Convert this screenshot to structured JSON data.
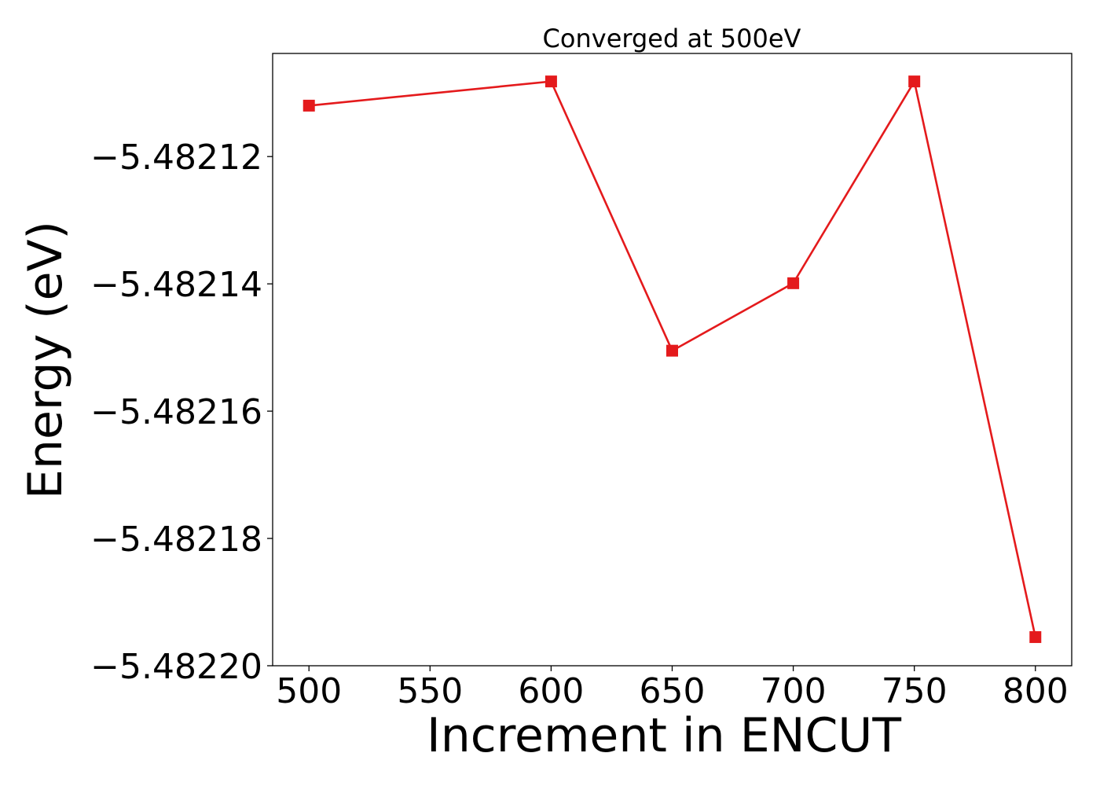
{
  "chart_data": {
    "type": "line",
    "title": "Converged at 500eV",
    "xlabel": "Increment in ENCUT",
    "ylabel": "Energy (eV)",
    "x": [
      500,
      600,
      650,
      700,
      750,
      800
    ],
    "series": [
      {
        "values": [
          -5.482112,
          -5.4821082,
          -5.4821505,
          -5.4821399,
          -5.4821082,
          -5.4821955
        ],
        "color": "#e41a1c",
        "marker": "square"
      }
    ],
    "xlim": [
      485,
      815
    ],
    "ylim": [
      -5.4822,
      -5.4821038
    ],
    "xticks": [
      500,
      550,
      600,
      650,
      700,
      750,
      800
    ],
    "xtick_labels": [
      "500",
      "550",
      "600",
      "650",
      "700",
      "750",
      "800"
    ],
    "yticks": [
      -5.48212,
      -5.48214,
      -5.48216,
      -5.48218,
      -5.4822
    ],
    "ytick_labels": [
      "−5.48212",
      "−5.48214",
      "−5.48216",
      "−5.48218",
      "−5.48220"
    ],
    "grid": false,
    "legend": "none"
  }
}
